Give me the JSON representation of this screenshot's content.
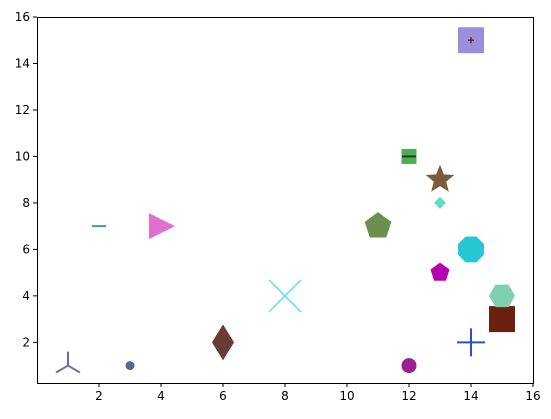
{
  "chart_data": {
    "type": "scatter",
    "title": "",
    "xlabel": "",
    "ylabel": "",
    "xlim": [
      0,
      16
    ],
    "ylim": [
      0.25,
      16
    ],
    "grid": false,
    "x_ticks": [
      2,
      4,
      6,
      8,
      10,
      12,
      14,
      16
    ],
    "y_ticks": [
      2,
      4,
      6,
      8,
      10,
      12,
      14,
      16
    ],
    "points": [
      {
        "x": 1,
        "y": 1,
        "marker": "tri_up",
        "color": "#6b6bb3"
      },
      {
        "x": 2,
        "y": 7,
        "marker": "hline",
        "color": "#3a9ac0"
      },
      {
        "x": 3,
        "y": 1,
        "marker": "circle",
        "color": "#4e6d8f"
      },
      {
        "x": 4,
        "y": 7,
        "marker": "triangle_right",
        "color": "#e070d0"
      },
      {
        "x": 6,
        "y": 2,
        "marker": "thin_diamond",
        "color": "#6b3c36"
      },
      {
        "x": 8,
        "y": 4,
        "marker": "x",
        "color": "#5ce0ee"
      },
      {
        "x": 11,
        "y": 7,
        "marker": "pentagon",
        "color": "#6b8f4e"
      },
      {
        "x": 12,
        "y": 1,
        "marker": "circle",
        "color": "#9e1f8e"
      },
      {
        "x": 12,
        "y": 10,
        "marker": "square",
        "color": "#4caf50"
      },
      {
        "x": 12,
        "y": 10,
        "marker": "hline",
        "color": "#333333"
      },
      {
        "x": 13,
        "y": 5,
        "marker": "pentagon",
        "color": "#b800b0"
      },
      {
        "x": 13,
        "y": 8,
        "marker": "diamond",
        "color": "#5ee0c8"
      },
      {
        "x": 13,
        "y": 9,
        "marker": "star",
        "color": "#7a5c3a"
      },
      {
        "x": 14,
        "y": 2,
        "marker": "plus",
        "color": "#2a4fd0"
      },
      {
        "x": 14,
        "y": 6,
        "marker": "octagon",
        "color": "#26c6d2"
      },
      {
        "x": 14,
        "y": 15,
        "marker": "square",
        "color": "#9a8ede"
      },
      {
        "x": 14,
        "y": 15,
        "marker": "plus",
        "color": "#8b1a1a"
      },
      {
        "x": 15,
        "y": 3,
        "marker": "square",
        "color": "#6b2010"
      },
      {
        "x": 15,
        "y": 4,
        "marker": "hexagon",
        "color": "#80d0b0"
      }
    ]
  }
}
